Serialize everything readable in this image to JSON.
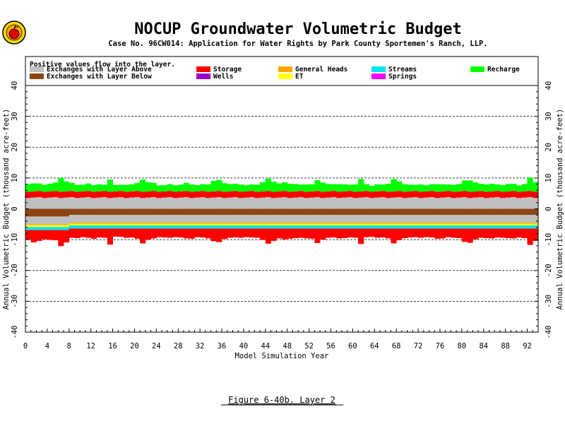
{
  "header": {
    "title": "NOCUP Groundwater Volumetric Budget",
    "subtitle": "Case No. 96CW014: Application for Water Rights by Park County Sportemen's Ranch, LLP."
  },
  "legend": {
    "note": "Positive values flow into the layer.",
    "items": [
      {
        "label": "Exchanges with Layer Above",
        "color": "#c0c0c0"
      },
      {
        "label": "Exchanges with Layer Below",
        "color": "#8b4513"
      },
      {
        "label": "Storage",
        "color": "#ff0000"
      },
      {
        "label": "Wells",
        "color": "#9900cc"
      },
      {
        "label": "General Heads",
        "color": "#ffa500"
      },
      {
        "label": "ET",
        "color": "#ffff00"
      },
      {
        "label": "Streams",
        "color": "#00e5ee"
      },
      {
        "label": "Springs",
        "color": "#ff00ff"
      },
      {
        "label": "Recharge",
        "color": "#00ff00"
      }
    ]
  },
  "axes": {
    "ylabel_left": "Annual Volumetric Budget (thousand acre-feet)",
    "ylabel_right": "Annual Volumetric Budget (thousand acre-feet)",
    "xlabel": "Model Simulation Year",
    "yticks": [
      "-40",
      "-30",
      "-20",
      "-10",
      "0",
      "10",
      "20",
      "30",
      "40"
    ],
    "xticks": [
      "0",
      "4",
      "8",
      "12",
      "16",
      "20",
      "24",
      "28",
      "32",
      "36",
      "40",
      "44",
      "48",
      "52",
      "56",
      "60",
      "64",
      "68",
      "72",
      "76",
      "80",
      "84",
      "88",
      "92"
    ]
  },
  "caption": "Figure 6-40b.  Layer 2",
  "chart_data": {
    "type": "bar",
    "stacked": true,
    "x_range": [
      0,
      94
    ],
    "ylim": [
      -40,
      40
    ],
    "grid": "dashed horizontal at 10-unit intervals",
    "legend_position": "top",
    "series": [
      {
        "name": "Exchanges with Layer Above",
        "color": "#c0c0c0",
        "positive": 3.5,
        "negative": -2.5
      },
      {
        "name": "Exchanges with Layer Below",
        "color": "#8b4513",
        "positive": 0,
        "negative": -2.0
      },
      {
        "name": "Storage",
        "color": "#ff0000",
        "positive": 2.0,
        "negative": -2.0
      },
      {
        "name": "Wells",
        "color": "#9900cc",
        "positive": 0,
        "negative": 0
      },
      {
        "name": "General Heads",
        "color": "#ffa500",
        "positive": 0,
        "negative": -0.3
      },
      {
        "name": "ET",
        "color": "#ffff00",
        "positive": 0,
        "negative": -0.6
      },
      {
        "name": "Streams",
        "color": "#00e5ee",
        "positive": 0,
        "negative": -1.0
      },
      {
        "name": "Springs",
        "color": "#ff00ff",
        "positive": 0,
        "negative": 0
      },
      {
        "name": "Recharge",
        "color": "#00ff00",
        "positive": 2.5,
        "negative": 0
      }
    ],
    "recharge_per_year": [
      2.5,
      2.6,
      2.4,
      2.3,
      2.5,
      2.7,
      4.5,
      3.2,
      2.6,
      2.3,
      2.2,
      2.4,
      2.2,
      2.3,
      2.0,
      4.0,
      2.1,
      2.0,
      2.3,
      2.3,
      2.6,
      4.0,
      3.0,
      2.6,
      2.1,
      2.0,
      2.2,
      2.1,
      2.2,
      2.6,
      2.4,
      2.0,
      2.2,
      2.4,
      3.4,
      3.6,
      2.8,
      2.4,
      2.3,
      2.4,
      2.0,
      2.1,
      2.3,
      3.0,
      4.0,
      3.3,
      2.6,
      2.8,
      2.6,
      2.4,
      2.1,
      2.4,
      2.3,
      3.5,
      3.0,
      2.4,
      2.2,
      2.5,
      2.3,
      2.0,
      2.4,
      4.0,
      2.2,
      2.0,
      2.3,
      2.1,
      2.6,
      4.0,
      3.1,
      2.5,
      2.2,
      2.0,
      2.4,
      2.0,
      2.2,
      2.5,
      2.3,
      2.1,
      2.3,
      2.4,
      3.4,
      3.7,
      2.9,
      2.3,
      2.4,
      2.5,
      2.1,
      2.2,
      2.4,
      2.3,
      2.1,
      2.4,
      4.4,
      3.2
    ],
    "storage_neg_extra_per_year": [
      1.0,
      2.0,
      1.5,
      1.0,
      1.2,
      1.3,
      3.2,
      2.0,
      1.0,
      1.1,
      0.8,
      1.0,
      1.3,
      0.9,
      1.0,
      3.2,
      0.6,
      0.7,
      1.0,
      0.9,
      1.3,
      2.8,
      1.7,
      1.2,
      0.8,
      0.9,
      1.0,
      0.8,
      0.9,
      1.2,
      1.3,
      0.8,
      0.9,
      1.2,
      2.1,
      2.4,
      1.4,
      1.0,
      0.9,
      1.0,
      0.8,
      0.9,
      1.0,
      1.7,
      2.9,
      2.0,
      1.2,
      1.5,
      1.3,
      1.1,
      1.0,
      1.2,
      1.3,
      2.7,
      1.6,
      1.0,
      0.9,
      1.2,
      1.1,
      0.9,
      1.0,
      3.0,
      0.8,
      0.7,
      1.0,
      0.9,
      1.2,
      2.8,
      1.8,
      1.1,
      0.9,
      0.8,
      1.0,
      0.8,
      0.9,
      1.3,
      1.2,
      0.8,
      1.0,
      1.1,
      2.3,
      2.6,
      1.5,
      1.0,
      1.1,
      1.2,
      0.9,
      1.0,
      1.1,
      1.2,
      0.9,
      1.1,
      3.3,
      2.0
    ]
  }
}
